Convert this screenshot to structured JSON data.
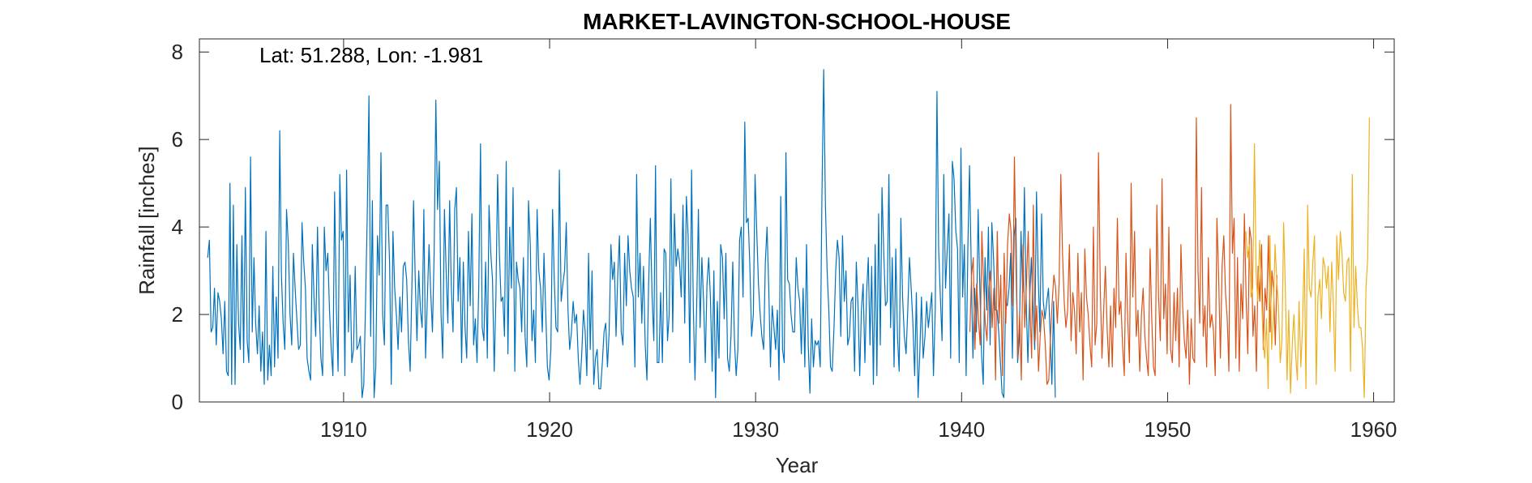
{
  "chart_data": {
    "type": "line",
    "title": "MARKET-LAVINGTON-SCHOOL-HOUSE",
    "annotation": "Lat: 51.288, Lon: -1.981",
    "xlabel": "Year",
    "ylabel": "Rainfall [inches]",
    "xlim": [
      1903,
      1961
    ],
    "ylim": [
      0,
      8.3
    ],
    "xticks": [
      1910,
      1920,
      1930,
      1940,
      1950,
      1960
    ],
    "yticks": [
      0,
      2,
      4,
      6,
      8
    ],
    "grid": false,
    "series": [
      {
        "color": "#0072BD",
        "start_year": 1903.4,
        "step_years": 0.0833,
        "values": [
          3.3,
          3.7,
          1.6,
          1.7,
          2.6,
          1.3,
          2.5,
          2.3,
          1.9,
          1.1,
          2.3,
          0.7,
          0.6,
          5.0,
          0.4,
          4.5,
          0.4,
          3.6,
          1.8,
          1.2,
          3.8,
          0.9,
          4.9,
          1.4,
          0.9,
          5.6,
          1.6,
          3.3,
          1.8,
          1.1,
          2.2,
          0.7,
          1.6,
          0.4,
          3.9,
          0.5,
          1.3,
          0.6,
          3.1,
          0.8,
          2.4,
          1.0,
          6.2,
          2.9,
          1.8,
          1.2,
          4.4,
          3.6,
          2.0,
          1.3,
          3.4,
          2.6,
          1.9,
          1.2,
          1.3,
          4.1,
          3.2,
          2.6,
          1.0,
          0.7,
          0.5,
          3.6,
          2.4,
          1.5,
          4.0,
          2.1,
          1.0,
          0.6,
          4.0,
          3.0,
          3.4,
          2.1,
          1.2,
          0.6,
          4.8,
          2.2,
          0.7,
          5.2,
          3.7,
          3.9,
          0.6,
          5.3,
          1.6,
          2.9,
          0.9,
          1.2,
          3.1,
          1.2,
          1.3,
          1.5,
          0.1,
          0.4,
          2.2,
          4.2,
          7.0,
          1.5,
          4.6,
          0.1,
          0.8,
          3.8,
          2.9,
          5.7,
          2.0,
          1.3,
          4.5,
          4.5,
          3.2,
          0.4,
          3.9,
          2.6,
          2.0,
          1.2,
          2.4,
          1.6,
          3.1,
          3.2,
          2.8,
          1.4,
          0.7,
          2.6,
          4.6,
          2.8,
          1.4,
          3.0,
          2.1,
          1.7,
          4.4,
          1.0,
          2.3,
          3.6,
          2.5,
          1.6,
          3.4,
          6.9,
          4.4,
          5.5,
          2.0,
          1.0,
          4.4,
          3.0,
          1.8,
          4.6,
          2.6,
          1.6,
          4.4,
          4.9,
          2.3,
          3.3,
          0.9,
          3.2,
          1.7,
          1.0,
          3.9,
          2.2,
          4.3,
          1.3,
          1.9,
          0.9,
          2.6,
          5.9,
          1.7,
          1.4,
          3.2,
          1.0,
          4.5,
          3.4,
          2.8,
          0.7,
          2.4,
          5.2,
          3.4,
          2.3,
          2.4,
          1.5,
          5.5,
          1.1,
          4.0,
          2.6,
          4.9,
          0.7,
          3.2,
          2.8,
          2.6,
          1.6,
          3.3,
          1.5,
          0.8,
          4.6,
          3.6,
          1.4,
          2.1,
          0.9,
          4.4,
          3.0,
          2.6,
          1.6,
          3.4,
          2.1,
          0.8,
          0.5,
          1.2,
          4.4,
          2.8,
          1.7,
          1.6,
          5.3,
          2.3,
          2.7,
          3.0,
          4.1,
          2.1,
          1.2,
          1.6,
          2.3,
          1.8,
          2.0,
          1.0,
          0.4,
          1.1,
          2.1,
          1.6,
          0.6,
          3.4,
          1.2,
          3.0,
          0.4,
          1.0,
          1.2,
          0.3,
          0.3,
          0.9,
          1.6,
          1.8,
          0.8,
          1.6,
          3.6,
          2.8,
          3.2,
          1.5,
          2.9,
          3.8,
          1.6,
          1.3,
          3.4,
          2.2,
          3.8,
          3.0,
          2.6,
          2.4,
          0.8,
          5.2,
          2.4,
          3.4,
          1.8,
          3.1,
          1.3,
          0.5,
          2.7,
          4.2,
          2.4,
          1.4,
          5.4,
          0.9,
          0.9,
          2.5,
          0.9,
          3.5,
          3.4,
          1.4,
          2.0,
          5.1,
          1.6,
          4.3,
          3.1,
          3.5,
          3.2,
          2.4,
          4.5,
          1.8,
          4.7,
          3.8,
          0.9,
          5.3,
          2.2,
          0.5,
          2.2,
          4.4,
          1.7,
          3.3,
          2.3,
          0.9,
          2.7,
          3.3,
          2.4,
          0.7,
          3.0,
          0.1,
          2.3,
          1.0,
          3.6,
          3.3,
          1.9,
          3.4,
          1.0,
          0.7,
          1.5,
          3.2,
          1.4,
          0.6,
          1.2,
          3.7,
          4.0,
          2.4,
          6.4,
          4.1,
          4.2,
          3.1,
          1.5,
          2.0,
          5.2,
          3.9,
          2.7,
          2.0,
          1.5,
          1.2,
          3.2,
          4.0,
          2.6,
          0.8,
          2.2,
          1.7,
          1.2,
          2.1,
          0.5,
          4.7,
          1.2,
          0.9,
          5.7,
          2.8,
          2.7,
          2.0,
          1.6,
          1.6,
          3.3,
          2.6,
          2.3,
          1.1,
          2.6,
          0.8,
          3.6,
          1.3,
          0.2,
          1.9,
          0.8,
          1.4,
          1.3,
          1.4,
          0.8,
          4.7,
          7.6,
          4.5,
          3.0,
          2.1,
          0.8,
          0.7,
          1.7,
          3.0,
          3.7,
          3.3,
          1.5,
          3.8,
          2.3,
          3.0,
          1.3,
          1.5,
          2.3,
          2.4,
          0.7,
          3.2,
          2.2,
          0.6,
          2.1,
          2.7,
          0.9,
          2.5,
          3.3,
          1.3,
          3.1,
          0.4,
          3.6,
          0.6,
          4.3,
          1.3,
          4.9,
          3.4,
          2.2,
          2.3,
          5.2,
          1.7,
          3.3,
          0.8,
          3.5,
          1.5,
          0.7,
          4.2,
          2.4,
          1.5,
          1.1,
          2.1,
          3.3,
          2.6,
          1.8,
          0.6,
          2.5,
          0.1,
          1.1,
          2.4,
          1.0,
          1.5,
          2.3,
          1.7,
          2.1,
          2.5,
          0.6,
          2.1,
          7.1,
          3.5,
          2.4,
          1.4,
          5.2,
          2.6,
          3.5,
          4.3,
          1.0,
          5.5,
          5.1,
          3.9,
          3.5,
          0.9,
          5.8,
          2.4,
          3.6,
          0.6,
          3.5,
          5.4,
          3.1,
          1.0,
          2.6,
          1.6,
          4.4,
          2.6,
          1.1,
          0.4,
          3.3,
          2.1,
          4.0,
          1.3,
          4.1,
          3.3,
          2.1,
          2.1,
          1.6,
          0.9,
          0.2,
          0.1,
          2.3,
          2.2,
          2.6,
          3.4,
          1.0,
          3.8,
          4.2,
          0.9,
          1.4,
          3.9,
          2.5,
          4.9,
          2.3,
          0.9,
          2.3,
          3.3,
          2.2,
          1.2,
          4.8,
          2.9,
          1.6,
          4.3,
          2.3,
          1.9,
          2.3,
          2.6,
          1.5,
          0.4,
          2.3,
          0.1
        ]
      },
      {
        "color": "#D95319",
        "start_year": 1940.4,
        "step_years": 0.0833,
        "values": [
          1.6,
          2.9,
          3.3,
          1.2,
          2.7,
          1.9,
          1.3,
          3.9,
          2.7,
          1.8,
          1.4,
          2.6,
          3.0,
          1.7,
          2.6,
          0.5,
          3.9,
          1.8,
          2.9,
          0.6,
          3.4,
          1.8,
          3.6,
          4.3,
          3.9,
          2.2,
          5.6,
          2.9,
          1.0,
          2.0,
          0.5,
          3.6,
          1.7,
          2.7,
          3.9,
          2.2,
          1.0,
          4.5,
          1.4,
          2.2,
          0.7,
          1.5,
          2.1,
          1.9,
          1.3,
          0.4,
          0.5,
          1.5,
          2.3,
          2.9,
          2.6,
          1.8,
          2.7,
          5.2,
          3.4,
          2.3,
          1.7,
          2.1,
          3.6,
          1.4,
          2.5,
          2.1,
          1.1,
          3.4,
          1.6,
          2.5,
          0.5,
          3.5,
          2.4,
          2.0,
          1.3,
          0.8,
          4.0,
          1.3,
          1.8,
          5.7,
          2.6,
          1.0,
          2.1,
          3.1,
          1.7,
          0.8,
          2.2,
          0.8,
          2.6,
          1.7,
          4.2,
          2.0,
          2.3,
          1.3,
          0.6,
          3.4,
          1.9,
          0.9,
          5.0,
          2.4,
          3.9,
          1.5,
          2.1,
          0.7,
          2.0,
          2.6,
          1.5,
          1.0,
          0.6,
          3.5,
          1.9,
          0.8,
          0.6,
          4.5,
          2.4,
          1.4,
          5.1,
          1.9,
          2.7,
          1.1,
          4.0,
          1.2,
          0.9,
          2.5,
          1.4,
          2.6,
          0.8,
          3.6,
          2.2,
          1.4,
          1.0,
          2.1,
          0.4,
          1.9,
          1.0,
          0.9,
          6.5,
          3.0,
          1.8,
          4.9,
          1.5,
          2.2,
          0.8,
          3.3,
          1.7,
          2.0,
          1.6,
          0.6,
          4.2,
          2.9,
          1.0,
          3.1,
          3.8,
          2.5,
          1.9,
          0.7,
          6.8,
          3.4,
          4.2,
          1.0,
          3.3,
          0.7,
          2.7,
          1.9,
          4.3,
          2.4,
          1.1,
          4.0,
          3.7,
          1.5,
          2.2,
          0.7,
          3.1,
          2.3,
          3.6,
          1.2,
          2.6,
          2.1,
          3.8,
          1.6,
          3.0,
          2.6,
          1.3,
          2.9
        ]
      },
      {
        "color": "#EDB120",
        "start_year": 1953.8,
        "step_years": 0.0833,
        "values": [
          3.9,
          3.3,
          3.6,
          2.4,
          2.6,
          5.9,
          2.9,
          2.3,
          3.7,
          2.6,
          1.4,
          1.0,
          1.9,
          0.3,
          3.8,
          1.2,
          1.9,
          3.6,
          2.8,
          2.2,
          0.9,
          1.4,
          4.1,
          2.6,
          0.5,
          2.1,
          0.2,
          1.3,
          2.0,
          1.1,
          0.5,
          2.3,
          0.8,
          1.7,
          3.5,
          0.3,
          4.5,
          2.6,
          2.4,
          3.2,
          3.8,
          0.4,
          2.4,
          2.8,
          1.9,
          3.3,
          3.1,
          2.6,
          3.1,
          1.6,
          3.2,
          2.2,
          0.7,
          3.8,
          2.8,
          3.9,
          3.4,
          2.5,
          2.3,
          3.2,
          3.3,
          0.7,
          5.2,
          1.7,
          3.1,
          2.2,
          1.7,
          1.7,
          1.2,
          0.1,
          2.6,
          3.3,
          6.5
        ]
      }
    ]
  }
}
